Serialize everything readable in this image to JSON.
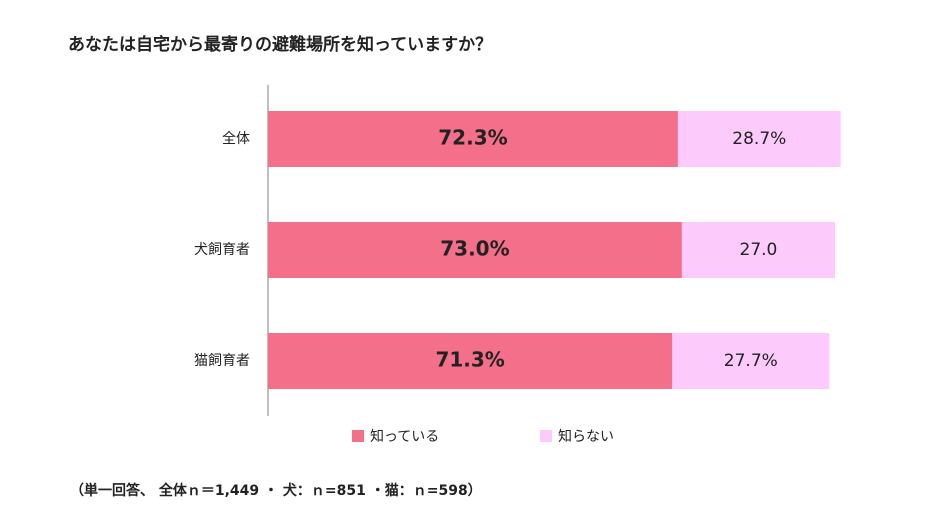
{
  "chart_data": {
    "type": "stacked_barh",
    "title": "あなたは自宅から最寄りの避難場所を知っていますか？",
    "categories": [
      "全体",
      "犬飼育者",
      "猫飼育者"
    ],
    "series": [
      {
        "name": "知っている",
        "color": "#f4708a",
        "values": [
          72.3,
          73.0,
          71.3
        ],
        "value_labels": [
          "72.3%",
          "73.0%",
          "71.3%"
        ]
      },
      {
        "name": "知らない",
        "color": "#fccbfc",
        "values": [
          28.7,
          27.0,
          27.7
        ],
        "value_labels": [
          "28.7%",
          "27.0",
          "27.7%"
        ]
      }
    ],
    "xlim": [
      0,
      100
    ],
    "note": "（単一回答、 全体ｎ＝1,449 ・ 犬：ｎ=851 ・猫：ｎ=598）"
  }
}
